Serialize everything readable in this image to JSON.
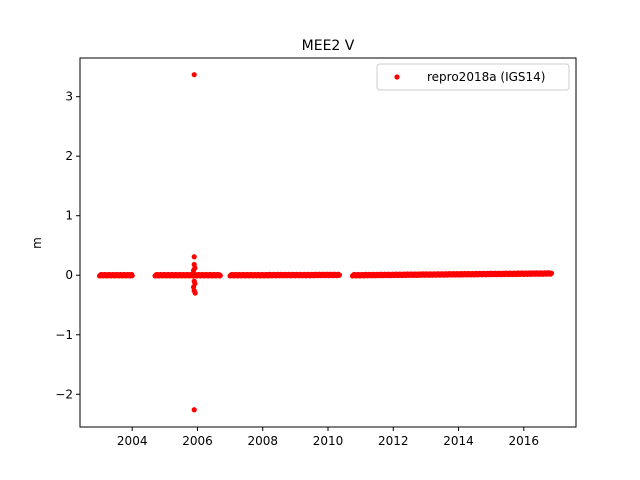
{
  "chart_data": {
    "type": "scatter",
    "title": "MEE2 V",
    "xlabel": "",
    "ylabel": "m",
    "xlim": [
      2002.4,
      2017.6
    ],
    "ylim": [
      -2.55,
      3.65
    ],
    "xticks": [
      2004,
      2006,
      2008,
      2010,
      2012,
      2014,
      2016
    ],
    "xtick_labels": [
      "2004",
      "2006",
      "2008",
      "2010",
      "2012",
      "2014",
      "2016"
    ],
    "yticks": [
      -2,
      -1,
      0,
      1,
      2,
      3
    ],
    "ytick_labels": [
      "−2",
      "−1",
      "0",
      "1",
      "2",
      "3"
    ],
    "grid": false,
    "legend": {
      "position": "top-right",
      "entries": [
        "repro2018a (IGS14)"
      ]
    },
    "series": [
      {
        "name": "repro2018a (IGS14)",
        "color": "#ff0000",
        "marker": "circle",
        "segments": [
          {
            "x_start": 2003.0,
            "x_end": 2004.0,
            "y_start": 0.0,
            "y_end": 0.0
          },
          {
            "x_start": 2004.7,
            "x_end": 2006.7,
            "y_start": 0.0,
            "y_end": 0.0
          },
          {
            "x_start": 2007.0,
            "x_end": 2010.35,
            "y_start": 0.0,
            "y_end": 0.005
          },
          {
            "x_start": 2010.75,
            "x_end": 2016.85,
            "y_start": 0.0,
            "y_end": 0.03
          }
        ],
        "outliers": [
          {
            "x": 2005.9,
            "y": 3.37
          },
          {
            "x": 2005.9,
            "y": 0.31
          },
          {
            "x": 2005.9,
            "y": 0.18
          },
          {
            "x": 2005.92,
            "y": 0.12
          },
          {
            "x": 2005.88,
            "y": 0.08
          },
          {
            "x": 2005.9,
            "y": -0.1
          },
          {
            "x": 2005.92,
            "y": -0.14
          },
          {
            "x": 2005.88,
            "y": -0.2
          },
          {
            "x": 2005.9,
            "y": -0.26
          },
          {
            "x": 2005.93,
            "y": -0.3
          },
          {
            "x": 2005.9,
            "y": -2.26
          }
        ]
      }
    ]
  }
}
